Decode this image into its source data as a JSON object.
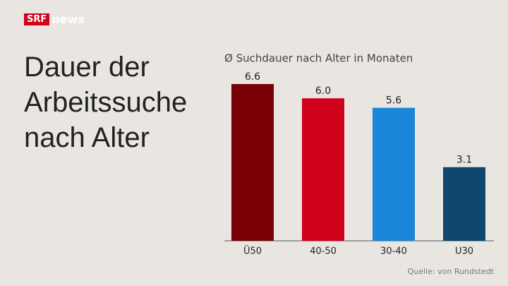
{
  "brand": {
    "logo": "SRF",
    "channel": "news"
  },
  "chart_data": {
    "type": "bar",
    "title": "Dauer der Arbeitssuche nach Alter",
    "subtitle": "Ø Suchdauer nach Alter in Monaten",
    "categories": [
      "Ü50",
      "40-50",
      "30-40",
      "U30"
    ],
    "values": [
      6.6,
      6.0,
      5.6,
      3.1
    ],
    "value_labels": [
      "6.6",
      "6.0",
      "5.6",
      "3.1"
    ],
    "colors": [
      "#7a0008",
      "#d0021b",
      "#1a86d8",
      "#0e4670"
    ],
    "source": "Quelle: von Rundstedt"
  }
}
